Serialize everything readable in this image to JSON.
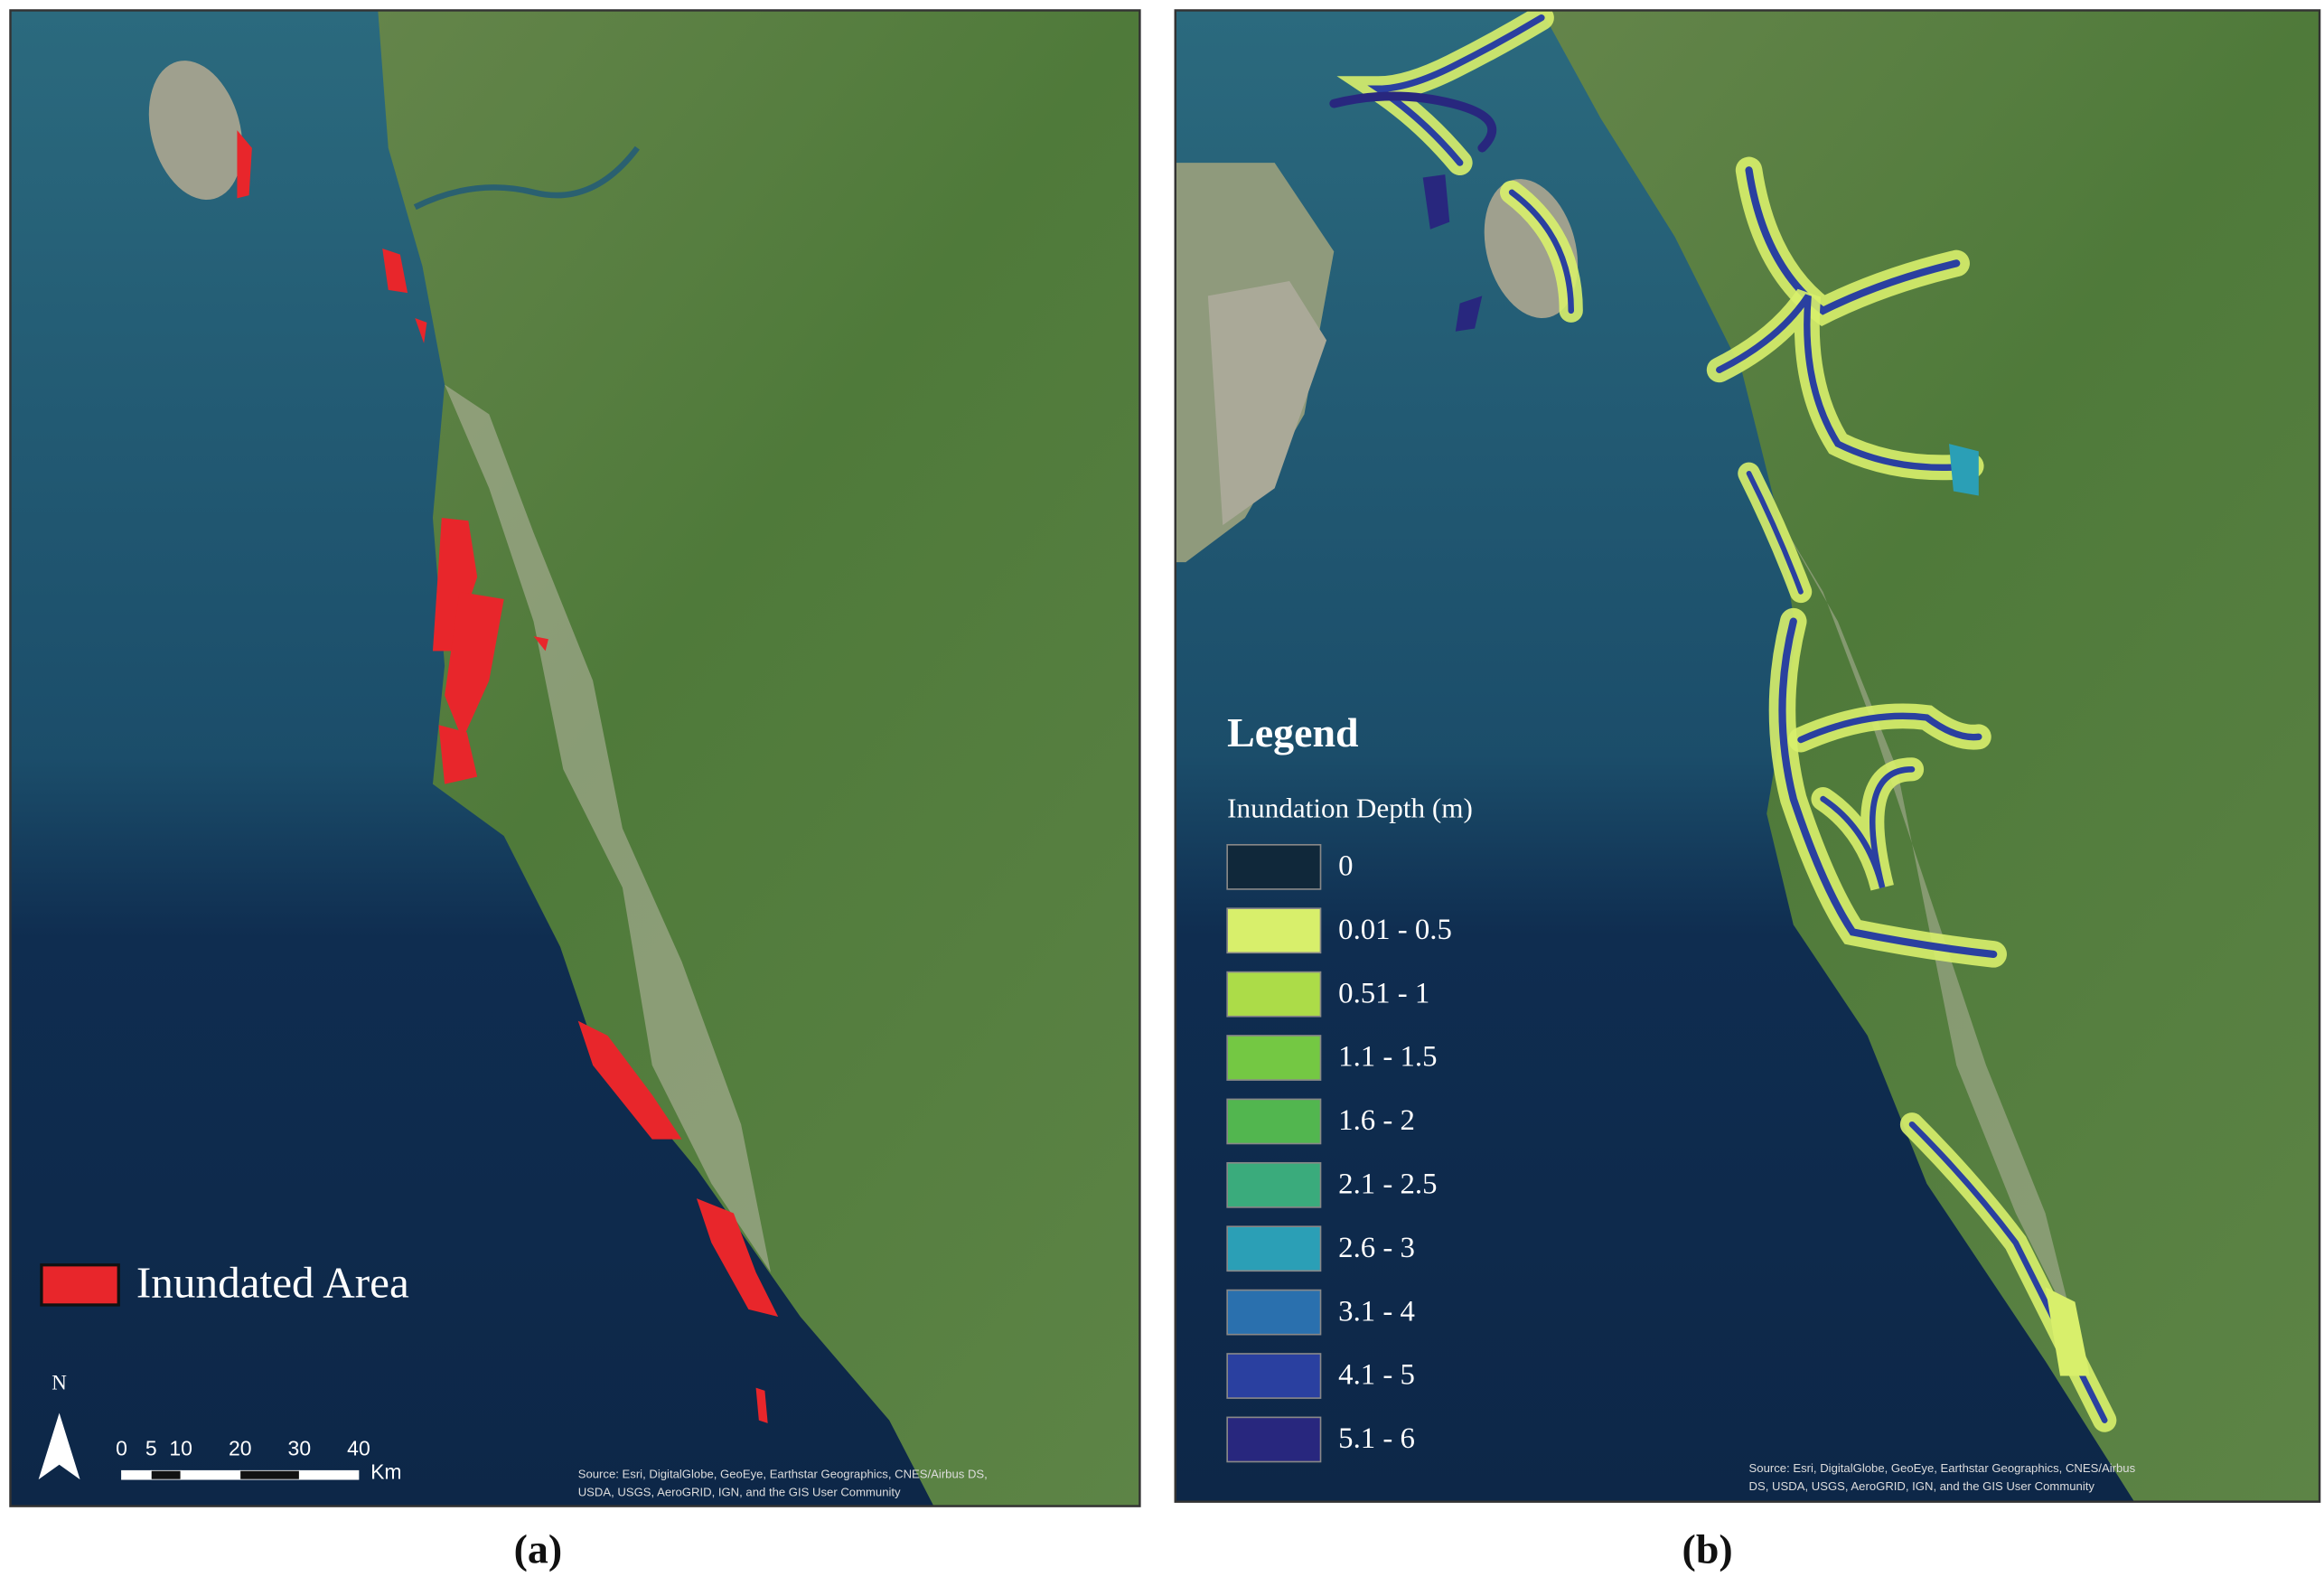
{
  "panel_a": {
    "caption": "(a)",
    "legend": {
      "label": "Inundated Area",
      "color": "#e8262b"
    },
    "north_label": "N",
    "scale_bar": {
      "ticks": [
        0,
        5,
        10,
        20,
        30,
        40
      ],
      "unit": "Km"
    },
    "attribution": [
      "Source: Esri, DigitalGlobe, GeoEye, Earthstar Geographics, CNES/Airbus DS,",
      "USDA, USGS, AeroGRID, IGN, and the GIS User Community"
    ]
  },
  "panel_b": {
    "caption": "(b)",
    "legend": {
      "title": "Legend",
      "subtitle": "Inundation Depth (m)",
      "classes": [
        {
          "label": "0",
          "color": "#10283a"
        },
        {
          "label": "0.01 - 0.5",
          "color": "#d8ef6b"
        },
        {
          "label": "0.51 - 1",
          "color": "#acdc48"
        },
        {
          "label": "1.1 - 1.5",
          "color": "#74c843"
        },
        {
          "label": "1.6 - 2",
          "color": "#52b64f"
        },
        {
          "label": "2.1 - 2.5",
          "color": "#3aab7c"
        },
        {
          "label": "2.6 - 3",
          "color": "#2b9fb6"
        },
        {
          "label": "3.1 - 4",
          "color": "#2a70ae"
        },
        {
          "label": "4.1 - 5",
          "color": "#2a40a0"
        },
        {
          "label": "5.1 - 6",
          "color": "#28277e"
        }
      ]
    },
    "attribution": [
      "Source: Esri, DigitalGlobe, GeoEye, Earthstar Geographics, CNES/Airbus",
      "DS, USDA, USGS, AeroGRID, IGN, and the GIS User Community"
    ]
  }
}
